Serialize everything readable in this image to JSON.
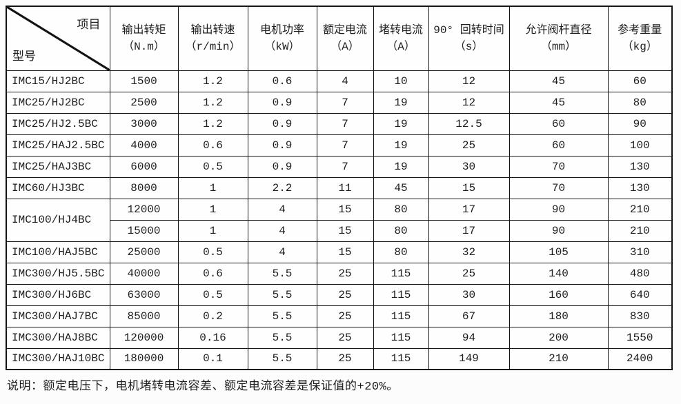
{
  "table": {
    "corner": {
      "top_right": "项目",
      "bottom_left": "型号"
    },
    "columns": [
      {
        "name": "输出转矩",
        "unit": "（N.m）"
      },
      {
        "name": "输出转速",
        "unit": "（r/min）"
      },
      {
        "name": "电机功率",
        "unit": "（kW）"
      },
      {
        "name": "额定电流",
        "unit": "（A）"
      },
      {
        "name": "堵转电流",
        "unit": "（A）"
      },
      {
        "name": "90° 回转时间",
        "unit": "（s）"
      },
      {
        "name": "允许阀杆直径",
        "unit": "（mm）"
      },
      {
        "name": "参考重量",
        "unit": "（kg）"
      }
    ],
    "rows": [
      {
        "model": "IMC15/HJ2BC",
        "span": 1,
        "values": [
          "1500",
          "1.2",
          "0.6",
          "4",
          "10",
          "12",
          "45",
          "60"
        ]
      },
      {
        "model": "IMC25/HJ2BC",
        "span": 1,
        "values": [
          "2500",
          "1.2",
          "0.9",
          "7",
          "19",
          "12",
          "45",
          "80"
        ]
      },
      {
        "model": "IMC25/HJ2.5BC",
        "span": 1,
        "values": [
          "3000",
          "1.2",
          "0.9",
          "7",
          "19",
          "12.5",
          "60",
          "90"
        ]
      },
      {
        "model": "IMC25/HAJ2.5BC",
        "span": 1,
        "values": [
          "4000",
          "0.6",
          "0.9",
          "7",
          "19",
          "25",
          "60",
          "100"
        ]
      },
      {
        "model": "IMC25/HAJ3BC",
        "span": 1,
        "values": [
          "6000",
          "0.5",
          "0.9",
          "7",
          "19",
          "30",
          "70",
          "130"
        ]
      },
      {
        "model": "IMC60/HJ3BC",
        "span": 1,
        "values": [
          "8000",
          "1",
          "2.2",
          "11",
          "45",
          "15",
          "70",
          "130"
        ]
      },
      {
        "model": "IMC100/HJ4BC",
        "span": 2,
        "values": [
          "12000",
          "1",
          "4",
          "15",
          "80",
          "17",
          "90",
          "210"
        ]
      },
      {
        "model": null,
        "values": [
          "15000",
          "1",
          "4",
          "15",
          "80",
          "17",
          "90",
          "210"
        ]
      },
      {
        "model": "IMC100/HAJ5BC",
        "span": 1,
        "values": [
          "25000",
          "0.5",
          "4",
          "15",
          "80",
          "32",
          "105",
          "310"
        ]
      },
      {
        "model": "IMC300/HJ5.5BC",
        "span": 1,
        "values": [
          "40000",
          "0.6",
          "5.5",
          "25",
          "115",
          "25",
          "140",
          "480"
        ]
      },
      {
        "model": "IMC300/HJ6BC",
        "span": 1,
        "values": [
          "63000",
          "0.5",
          "5.5",
          "25",
          "115",
          "30",
          "160",
          "640"
        ]
      },
      {
        "model": "IMC300/HAJ7BC",
        "span": 1,
        "values": [
          "85000",
          "0.2",
          "5.5",
          "25",
          "115",
          "67",
          "180",
          "830"
        ]
      },
      {
        "model": "IMC300/HAJ8BC",
        "span": 1,
        "values": [
          "120000",
          "0.16",
          "5.5",
          "25",
          "115",
          "94",
          "200",
          "1550"
        ]
      },
      {
        "model": "IMC300/HAJ10BC",
        "span": 1,
        "values": [
          "180000",
          "0.1",
          "5.5",
          "25",
          "115",
          "149",
          "210",
          "2400"
        ]
      }
    ]
  },
  "footnote": "说明：额定电压下，电机堵转电流容差、额定电流容差是保证值的+20%。",
  "colors": {
    "border": "#131313",
    "text": "#1d1d1d",
    "background": "#fcfcfc"
  }
}
